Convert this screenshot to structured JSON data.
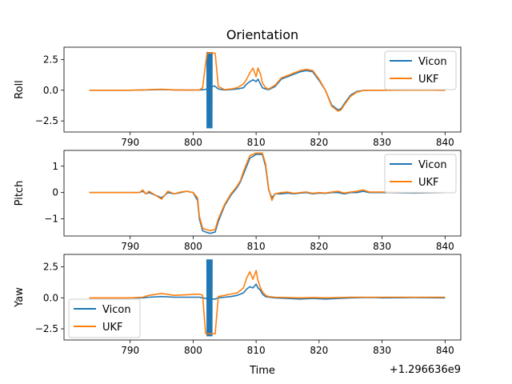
{
  "figure": {
    "title": "Orientation",
    "xlabel": "Time",
    "offset_label": "+1.296636e9"
  },
  "chart_data": [
    {
      "type": "line",
      "ylabel": "Roll",
      "xlim": [
        779.5,
        842.5
      ],
      "ylim": [
        -3.4,
        3.5
      ],
      "xticks": [
        790,
        800,
        810,
        820,
        830,
        840
      ],
      "yticks": [
        -2.5,
        0.0,
        2.5
      ],
      "ytick_labels": [
        "−2.5",
        "0.0",
        "2.5"
      ],
      "xtick_labels": [
        "790",
        "800",
        "810",
        "820",
        "830",
        "840"
      ],
      "legend": "top-right",
      "series": [
        {
          "name": "Vicon",
          "color": "#1f77b4",
          "x": [
            783.5,
            790,
            792,
            793,
            795,
            797,
            799,
            801,
            801.8,
            802.2,
            802.6,
            803,
            803.4,
            804,
            805,
            806,
            807,
            808,
            808.5,
            809,
            809.5,
            810,
            810.3,
            810.7,
            811,
            811.5,
            812,
            813,
            814,
            815,
            816,
            817,
            818,
            819,
            820,
            821,
            822,
            823,
            823.5,
            824,
            825,
            826,
            827,
            828,
            830,
            835,
            840
          ],
          "y": [
            0,
            0,
            0.02,
            0.03,
            0.05,
            0.02,
            0.01,
            0.02,
            0.05,
            0.1,
            0.2,
            0.3,
            0.35,
            0.1,
            0.02,
            0.05,
            0.1,
            0.2,
            0.5,
            0.7,
            0.85,
            0.7,
            0.9,
            0.5,
            0.2,
            0.1,
            0.05,
            0.3,
            0.9,
            1.1,
            1.3,
            1.5,
            1.6,
            1.5,
            0.8,
            0,
            -1.2,
            -1.6,
            -1.5,
            -1.1,
            -0.4,
            -0.1,
            -0.02,
            0,
            0,
            0.01,
            0
          ]
        },
        {
          "name": "UKF",
          "color": "#ff7f0e",
          "x": [
            783.5,
            790,
            792,
            793,
            795,
            797,
            799,
            801,
            801.5,
            802.2,
            803,
            803.5,
            804,
            805,
            806,
            807,
            808,
            808.5,
            809,
            809.5,
            810,
            810.3,
            810.7,
            811,
            811.5,
            812,
            813,
            814,
            815,
            816,
            817,
            818,
            819,
            820,
            821,
            822,
            823,
            823.5,
            824,
            825,
            826,
            827,
            828,
            830,
            835,
            840
          ],
          "y": [
            0,
            0,
            0.02,
            0.05,
            0.08,
            0.03,
            0.01,
            0.02,
            0.2,
            3.0,
            3.05,
            3.0,
            0.3,
            0.05,
            0.1,
            0.2,
            0.5,
            0.9,
            1.4,
            1.8,
            1.1,
            1.8,
            1.3,
            0.6,
            0.2,
            0.1,
            0.4,
            1.0,
            1.2,
            1.4,
            1.6,
            1.7,
            1.6,
            0.9,
            0,
            -1.3,
            -1.7,
            -1.6,
            -1.2,
            -0.5,
            -0.15,
            -0.03,
            0,
            0,
            0.01,
            0
          ]
        }
      ],
      "burst": {
        "series": "Vicon",
        "x_start": 802.2,
        "x_end": 803.0,
        "low": -3.1,
        "high": 3.1
      }
    },
    {
      "type": "line",
      "ylabel": "Pitch",
      "xlim": [
        779.5,
        842.5
      ],
      "ylim": [
        -1.65,
        1.6
      ],
      "xticks": [
        790,
        800,
        810,
        820,
        830,
        840
      ],
      "yticks": [
        -1,
        0,
        1
      ],
      "ytick_labels": [
        "−1",
        "0",
        "1"
      ],
      "xtick_labels": [
        "790",
        "800",
        "810",
        "820",
        "830",
        "840"
      ],
      "legend": "top-right",
      "series": [
        {
          "name": "Vicon",
          "color": "#1f77b4",
          "x": [
            783.5,
            790,
            791.5,
            792,
            792.5,
            793,
            794,
            795,
            796,
            797,
            798,
            799,
            800,
            800.7,
            801,
            801.5,
            802,
            802.7,
            803.5,
            804,
            805,
            806,
            807,
            807.5,
            808,
            809,
            810,
            811,
            811.5,
            812,
            812.5,
            813,
            814,
            815,
            816,
            817,
            818,
            819,
            820,
            821,
            822,
            823,
            824,
            825,
            826,
            827,
            828,
            830,
            835,
            840
          ],
          "y": [
            0,
            0,
            0,
            0.05,
            -0.05,
            0,
            -0.1,
            -0.2,
            0,
            -0.05,
            0,
            0.05,
            0,
            -0.3,
            -1.0,
            -1.45,
            -1.5,
            -1.55,
            -1.5,
            -1.1,
            -0.5,
            -0.1,
            0.2,
            0.4,
            0.7,
            1.3,
            1.45,
            1.45,
            1.0,
            0.1,
            -0.2,
            -0.05,
            -0.05,
            -0.02,
            -0.05,
            -0.02,
            0,
            -0.05,
            -0.02,
            -0.03,
            0,
            0,
            -0.05,
            0,
            0,
            0.05,
            0,
            0,
            -0.02,
            0
          ]
        },
        {
          "name": "UKF",
          "color": "#ff7f0e",
          "x": [
            783.5,
            790,
            791.5,
            792,
            792.5,
            793,
            794,
            795,
            796,
            797,
            798,
            799,
            800,
            800.7,
            801,
            801.5,
            802,
            802.7,
            803.5,
            804,
            805,
            806,
            807,
            807.5,
            808,
            809,
            810,
            811,
            811.5,
            812,
            812.5,
            813,
            814,
            815,
            816,
            817,
            818,
            819,
            820,
            821,
            822,
            823,
            824,
            825,
            826,
            827,
            828,
            830,
            835,
            840
          ],
          "y": [
            0,
            0,
            0,
            0.1,
            -0.05,
            0.05,
            -0.1,
            -0.25,
            0.05,
            -0.05,
            0.02,
            0.05,
            0,
            -0.2,
            -0.9,
            -1.35,
            -1.4,
            -1.45,
            -1.4,
            -1.0,
            -0.45,
            -0.05,
            0.25,
            0.45,
            0.8,
            1.4,
            1.5,
            1.5,
            1.1,
            0.15,
            -0.3,
            -0.05,
            0,
            0.02,
            -0.03,
            0,
            0.02,
            -0.03,
            0,
            -0.02,
            0.02,
            0.05,
            -0.02,
            0.02,
            0.05,
            0.1,
            0.02,
            0.02,
            0,
            0
          ]
        }
      ]
    },
    {
      "type": "line",
      "ylabel": "Yaw",
      "xlim": [
        779.5,
        842.5
      ],
      "ylim": [
        -3.4,
        3.5
      ],
      "xticks": [
        790,
        800,
        810,
        820,
        830,
        840
      ],
      "yticks": [
        -2.5,
        0.0,
        2.5
      ],
      "ytick_labels": [
        "−2.5",
        "0.0",
        "2.5"
      ],
      "xtick_labels": [
        "790",
        "800",
        "810",
        "820",
        "830",
        "840"
      ],
      "legend": "bottom-left",
      "series": [
        {
          "name": "Vicon",
          "color": "#1f77b4",
          "x": [
            783.5,
            790,
            792,
            793,
            795,
            797,
            799,
            801,
            801.5,
            802,
            803,
            803.5,
            804,
            805,
            806,
            807,
            808,
            808.5,
            809,
            809.5,
            810,
            810.3,
            810.7,
            811,
            811.5,
            812,
            813,
            815,
            817,
            819,
            821,
            823,
            825,
            827,
            829,
            830,
            835,
            840
          ],
          "y": [
            0,
            0,
            0,
            0.05,
            0.1,
            0.05,
            0.05,
            0.05,
            0,
            -0.05,
            -0.1,
            -0.1,
            0,
            0.05,
            0.1,
            0.2,
            0.4,
            0.7,
            0.9,
            0.8,
            1.1,
            0.8,
            0.6,
            0.3,
            0.1,
            0.05,
            0,
            -0.05,
            -0.1,
            -0.05,
            -0.1,
            -0.05,
            0,
            0.02,
            0.02,
            0,
            0.02,
            0
          ]
        },
        {
          "name": "UKF",
          "color": "#ff7f0e",
          "x": [
            783.5,
            790,
            792,
            793,
            795,
            797,
            799,
            801,
            801.5,
            802,
            803,
            803.5,
            804,
            805,
            806,
            807,
            808,
            808.5,
            809,
            809.5,
            810,
            810.3,
            810.7,
            811,
            811.5,
            812,
            813,
            815,
            817,
            819,
            821,
            823,
            825,
            827,
            829,
            830,
            835,
            840
          ],
          "y": [
            0,
            0,
            0.05,
            0.2,
            0.35,
            0.2,
            0.25,
            0.3,
            0.2,
            -2.9,
            -2.9,
            -2.9,
            0.1,
            0.2,
            0.3,
            0.4,
            0.8,
            1.6,
            2.1,
            1.5,
            2.2,
            1.4,
            0.8,
            0.5,
            0.2,
            0.1,
            0.05,
            0.02,
            0,
            0.02,
            0,
            0.02,
            0.05,
            0.05,
            0.05,
            0.05,
            0.05,
            0.05
          ]
        }
      ],
      "burst": {
        "series": "Vicon",
        "x_start": 802.2,
        "x_end": 803.0,
        "low": -3.1,
        "high": 3.1
      }
    }
  ]
}
